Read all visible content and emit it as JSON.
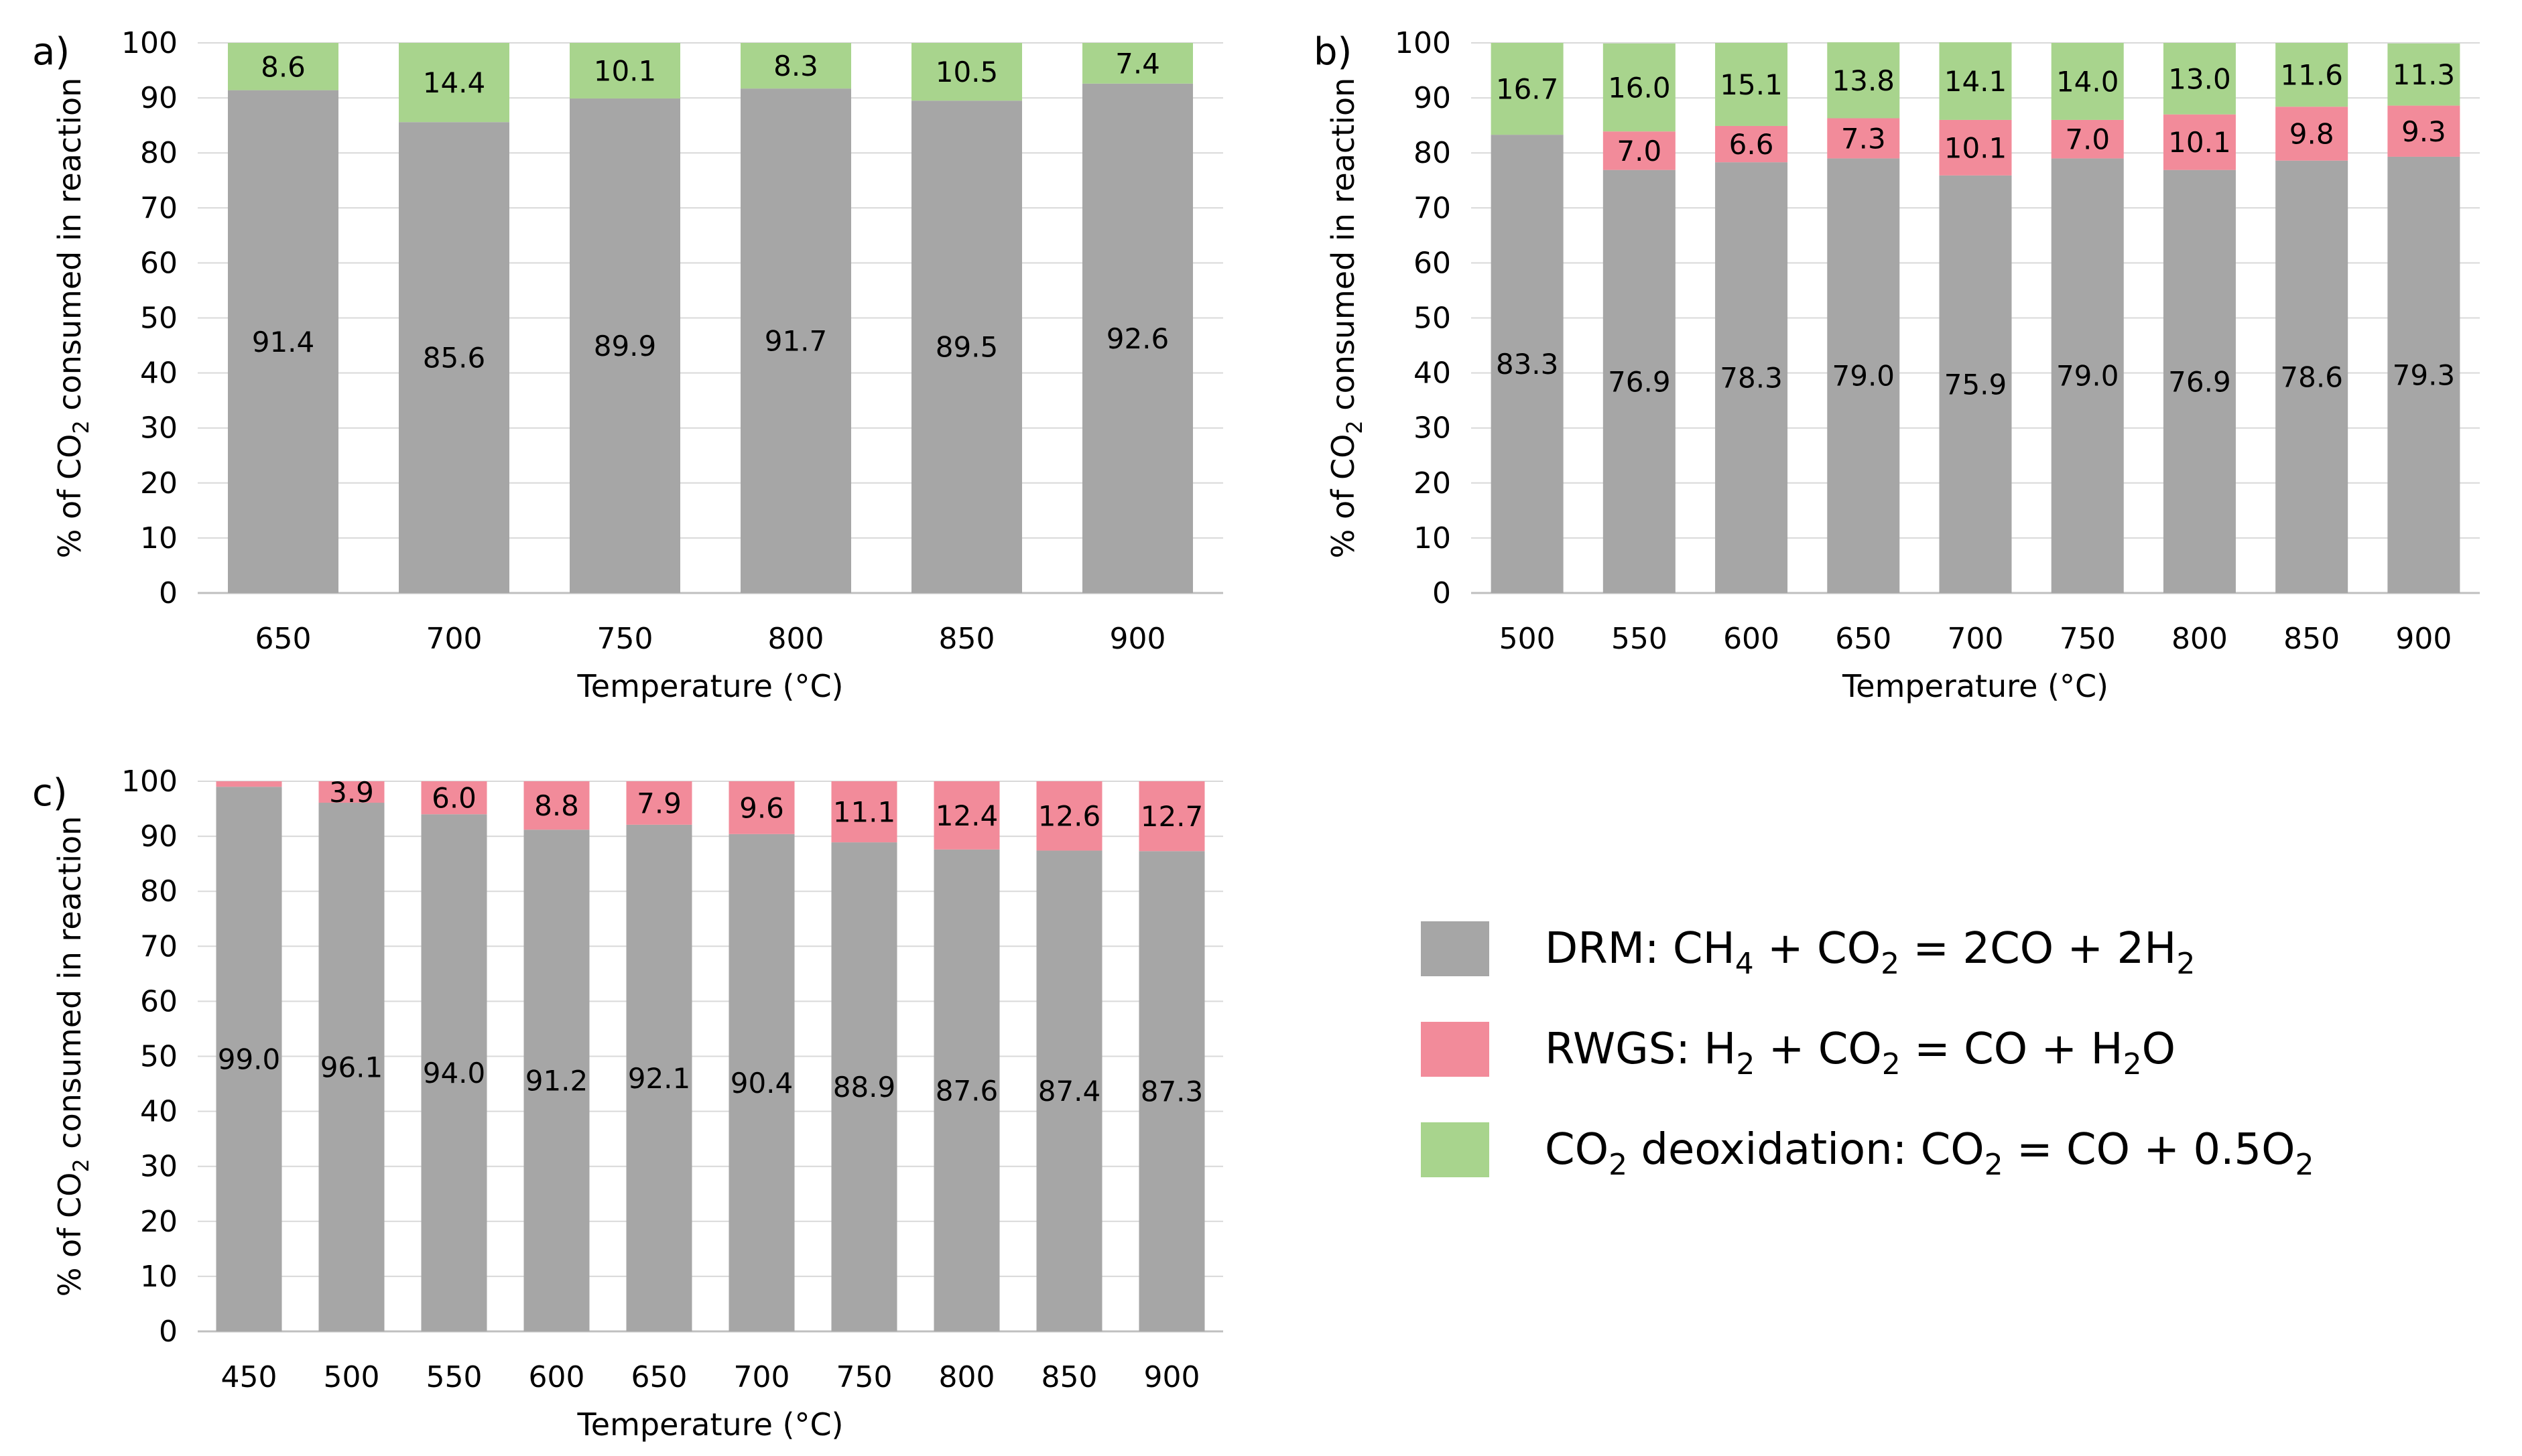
{
  "colors": {
    "DRM": "#a6a6a6",
    "RWGS": "#f28b9a",
    "deox": "#a8d48d",
    "grid": "#d9d9d9",
    "axis": "#bfbfbf"
  },
  "legend": [
    {
      "key": "DRM",
      "pre": "DRM: CH",
      "s1": "4",
      "mid1": " + CO",
      "s2": "2",
      "post": " = 2CO + 2H",
      "s3": "2",
      "tail": ""
    },
    {
      "key": "RWGS",
      "pre": "RWGS: H",
      "s1": "2",
      "mid1": " + CO",
      "s2": "2",
      "post": " = CO + H",
      "s3": "2",
      "tail": "O"
    },
    {
      "key": "deox",
      "pre": "CO",
      "s1": "2",
      "mid1": " deoxidation: CO",
      "s2": "2",
      "post": " = CO + 0.5O",
      "s3": "2",
      "tail": ""
    }
  ],
  "chart_data": [
    {
      "type": "bar",
      "stacked": true,
      "panel": "a)",
      "xlabel": "Temperature (°C)",
      "ylabel_pre": "% of CO",
      "ylabel_sub": "2",
      "ylabel_post": " consumed in reaction",
      "ylim": [
        0,
        100
      ],
      "yticks": [
        0,
        10,
        20,
        30,
        40,
        50,
        60,
        70,
        80,
        90,
        100
      ],
      "categories": [
        "650",
        "700",
        "750",
        "800",
        "850",
        "900"
      ],
      "series": [
        {
          "key": "DRM",
          "values": [
            91.4,
            85.6,
            89.9,
            91.7,
            89.5,
            92.6
          ],
          "labels": [
            "91.4",
            "85.6",
            "89.9",
            "91.7",
            "89.5",
            "92.6"
          ]
        },
        {
          "key": "RWGS",
          "values": [
            0,
            0,
            0,
            0,
            0,
            0
          ],
          "labels": [
            "",
            "",
            "",
            "",
            "",
            ""
          ]
        },
        {
          "key": "deox",
          "values": [
            8.6,
            14.4,
            10.1,
            8.3,
            10.5,
            7.4
          ],
          "labels": [
            "8.6",
            "14.4",
            "10.1",
            "8.3",
            "10.5",
            "7.4"
          ]
        }
      ]
    },
    {
      "type": "bar",
      "stacked": true,
      "panel": "b)",
      "xlabel": "Temperature (°C)",
      "ylabel_pre": "% of CO",
      "ylabel_sub": "2",
      "ylabel_post": " consumed in reaction",
      "ylim": [
        0,
        100
      ],
      "yticks": [
        0,
        10,
        20,
        30,
        40,
        50,
        60,
        70,
        80,
        90,
        100
      ],
      "categories": [
        "500",
        "550",
        "600",
        "650",
        "700",
        "750",
        "800",
        "850",
        "900"
      ],
      "series": [
        {
          "key": "DRM",
          "values": [
            83.3,
            76.9,
            78.3,
            79.0,
            75.9,
            79.0,
            76.9,
            78.6,
            79.3
          ],
          "labels": [
            "83.3",
            "76.9",
            "78.3",
            "79.0",
            "75.9",
            "79.0",
            "76.9",
            "78.6",
            "79.3"
          ]
        },
        {
          "key": "RWGS",
          "values": [
            0,
            7.0,
            6.6,
            7.3,
            10.1,
            7.0,
            10.1,
            9.8,
            9.3
          ],
          "labels": [
            "",
            "7.0",
            "6.6",
            "7.3",
            "10.1",
            "7.0",
            "10.1",
            "9.8",
            "9.3"
          ]
        },
        {
          "key": "deox",
          "values": [
            16.7,
            16.0,
            15.1,
            13.8,
            14.1,
            14.0,
            13.0,
            11.6,
            11.3
          ],
          "labels": [
            "16.7",
            "16.0",
            "15.1",
            "13.8",
            "14.1",
            "14.0",
            "13.0",
            "11.6",
            "11.3"
          ]
        }
      ]
    },
    {
      "type": "bar",
      "stacked": true,
      "panel": "c)",
      "xlabel": "Temperature (°C)",
      "ylabel_pre": "% of CO",
      "ylabel_sub": "2",
      "ylabel_post": " consumed in reaction",
      "ylim": [
        0,
        100
      ],
      "yticks": [
        0,
        10,
        20,
        30,
        40,
        50,
        60,
        70,
        80,
        90,
        100
      ],
      "categories": [
        "450",
        "500",
        "550",
        "600",
        "650",
        "700",
        "750",
        "800",
        "850",
        "900"
      ],
      "series": [
        {
          "key": "DRM",
          "values": [
            99.0,
            96.1,
            94.0,
            91.2,
            92.1,
            90.4,
            88.9,
            87.6,
            87.4,
            87.3
          ],
          "labels": [
            "99.0",
            "96.1",
            "94.0",
            "91.2",
            "92.1",
            "90.4",
            "88.9",
            "87.6",
            "87.4",
            "87.3"
          ]
        },
        {
          "key": "RWGS",
          "values": [
            1.0,
            3.9,
            6.0,
            8.8,
            7.9,
            9.6,
            11.1,
            12.4,
            12.6,
            12.7
          ],
          "labels": [
            "",
            "3.9",
            "6.0",
            "8.8",
            "7.9",
            "9.6",
            "11.1",
            "12.4",
            "12.6",
            "12.7"
          ]
        },
        {
          "key": "deox",
          "values": [
            0,
            0,
            0,
            0,
            0,
            0,
            0,
            0,
            0,
            0
          ],
          "labels": [
            "",
            "",
            "",
            "",
            "",
            "",
            "",
            "",
            "",
            ""
          ]
        }
      ]
    }
  ]
}
